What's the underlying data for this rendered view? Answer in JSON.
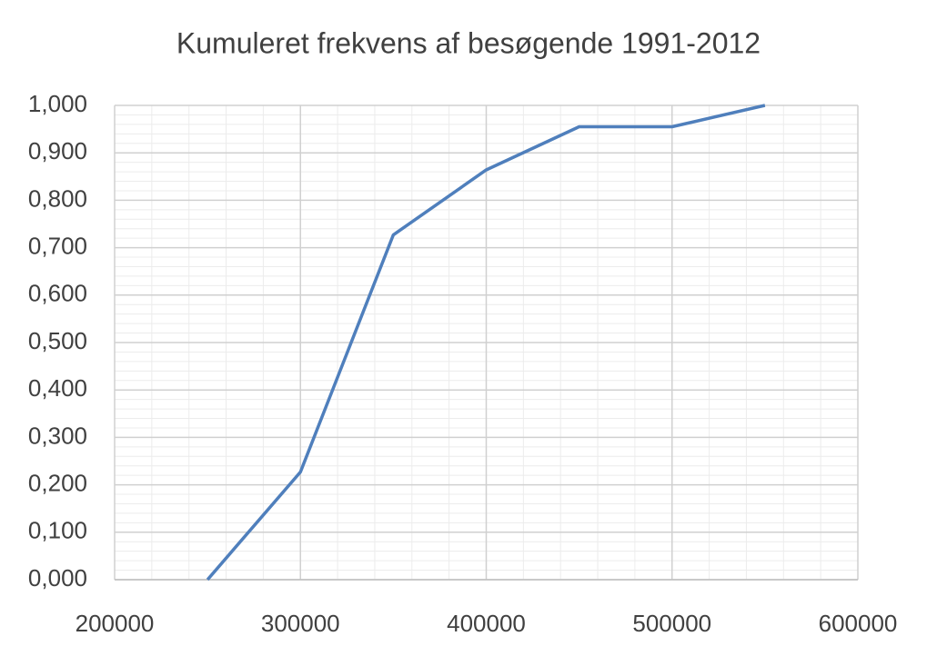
{
  "chart_data": {
    "type": "line",
    "title": "Kumuleret frekvens af besøgende 1991-2012",
    "x": [
      250000,
      300000,
      350000,
      400000,
      450000,
      500000,
      550000
    ],
    "series": [
      {
        "name": "Kumuleret frekvens",
        "color": "#4f7fbc",
        "values": [
          0,
          0.227,
          0.727,
          0.864,
          0.955,
          0.955,
          1.0
        ]
      }
    ],
    "xlim": [
      200000,
      600000
    ],
    "xticks": [
      200000,
      300000,
      400000,
      500000,
      600000
    ],
    "ylim": [
      0,
      1
    ],
    "yticks": [
      {
        "value": 0,
        "label": "0,000"
      },
      {
        "value": 0.1,
        "label": "0,100"
      },
      {
        "value": 0.2,
        "label": "0,200"
      },
      {
        "value": 0.3,
        "label": "0,300"
      },
      {
        "value": 0.4,
        "label": "0,400"
      },
      {
        "value": 0.5,
        "label": "0,500"
      },
      {
        "value": 0.6,
        "label": "0,600"
      },
      {
        "value": 0.7,
        "label": "0,700"
      },
      {
        "value": 0.8,
        "label": "0,800"
      },
      {
        "value": 0.9,
        "label": "0,900"
      },
      {
        "value": 1,
        "label": "1,000"
      }
    ],
    "grid": true
  }
}
